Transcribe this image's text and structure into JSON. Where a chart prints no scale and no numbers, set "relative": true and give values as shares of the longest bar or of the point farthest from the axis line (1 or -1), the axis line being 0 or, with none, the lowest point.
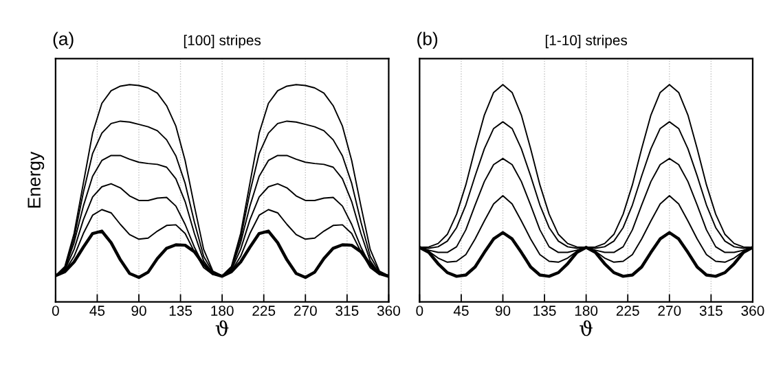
{
  "chart_data": [
    {
      "type": "line",
      "title": "[100] stripes",
      "annotations": [
        "(a)"
      ],
      "ylabel": "Energy",
      "xlabel": "ϑ",
      "relative": true,
      "grid": "x",
      "x": [
        0,
        10,
        20,
        30,
        40,
        50,
        60,
        70,
        80,
        90,
        100,
        110,
        120,
        130,
        140,
        150,
        160,
        170,
        180,
        190,
        200,
        210,
        220,
        230,
        240,
        250,
        260,
        270,
        280,
        290,
        300,
        310,
        320,
        330,
        340,
        350,
        360
      ],
      "xlim": [
        0,
        360
      ],
      "xticks": [
        0,
        45,
        90,
        135,
        180,
        225,
        270,
        315,
        360
      ],
      "series": [
        {
          "color": "#000000",
          "values": [
            0.121,
            0.139,
            0.184,
            0.252,
            0.315,
            0.326,
            0.273,
            0.194,
            0.131,
            0.113,
            0.137,
            0.2,
            0.247,
            0.263,
            0.261,
            0.231,
            0.173,
            0.131,
            0.118,
            0.139,
            0.184,
            0.252,
            0.315,
            0.326,
            0.273,
            0.194,
            0.131,
            0.113,
            0.137,
            0.2,
            0.247,
            0.263,
            0.261,
            0.231,
            0.173,
            0.131,
            0.118
          ]
        },
        {
          "color": "#000000",
          "values": [
            0.121,
            0.142,
            0.21,
            0.315,
            0.399,
            0.425,
            0.41,
            0.357,
            0.31,
            0.289,
            0.294,
            0.326,
            0.352,
            0.355,
            0.315,
            0.231,
            0.158,
            0.126,
            0.121,
            0.142,
            0.21,
            0.315,
            0.399,
            0.425,
            0.41,
            0.357,
            0.31,
            0.289,
            0.294,
            0.326,
            0.352,
            0.355,
            0.315,
            0.231,
            0.158,
            0.126,
            0.121
          ]
        },
        {
          "color": "#000000",
          "values": [
            0.121,
            0.147,
            0.242,
            0.378,
            0.483,
            0.53,
            0.544,
            0.525,
            0.488,
            0.467,
            0.467,
            0.478,
            0.481,
            0.441,
            0.357,
            0.252,
            0.168,
            0.128,
            0.121,
            0.147,
            0.242,
            0.378,
            0.483,
            0.53,
            0.544,
            0.525,
            0.488,
            0.467,
            0.467,
            0.478,
            0.481,
            0.441,
            0.357,
            0.252,
            0.168,
            0.128,
            0.121
          ]
        },
        {
          "color": "#000000",
          "values": [
            0.121,
            0.152,
            0.273,
            0.441,
            0.578,
            0.651,
            0.674,
            0.674,
            0.657,
            0.643,
            0.637,
            0.633,
            0.62,
            0.567,
            0.462,
            0.315,
            0.189,
            0.131,
            0.121,
            0.152,
            0.273,
            0.441,
            0.578,
            0.651,
            0.674,
            0.674,
            0.657,
            0.643,
            0.637,
            0.633,
            0.62,
            0.567,
            0.462,
            0.315,
            0.189,
            0.131,
            0.121
          ]
        },
        {
          "color": "#000000",
          "values": [
            0.121,
            0.158,
            0.294,
            0.504,
            0.683,
            0.777,
            0.821,
            0.832,
            0.828,
            0.817,
            0.806,
            0.788,
            0.746,
            0.672,
            0.546,
            0.368,
            0.21,
            0.137,
            0.121,
            0.158,
            0.294,
            0.504,
            0.683,
            0.777,
            0.821,
            0.832,
            0.828,
            0.817,
            0.806,
            0.788,
            0.746,
            0.672,
            0.546,
            0.368,
            0.21,
            0.137,
            0.121
          ]
        },
        {
          "color": "#000000",
          "values": [
            0.121,
            0.163,
            0.315,
            0.546,
            0.777,
            0.914,
            0.972,
            0.993,
            1.0,
            0.996,
            0.985,
            0.961,
            0.903,
            0.809,
            0.651,
            0.441,
            0.242,
            0.142,
            0.121,
            0.163,
            0.315,
            0.546,
            0.777,
            0.914,
            0.972,
            0.993,
            1.0,
            0.996,
            0.985,
            0.961,
            0.903,
            0.809,
            0.651,
            0.441,
            0.242,
            0.142,
            0.121
          ]
        }
      ]
    },
    {
      "type": "line",
      "title": "[1-10] stripes",
      "annotations": [
        "(b)"
      ],
      "xlabel": "ϑ",
      "relative": true,
      "grid": "x",
      "x": [
        0,
        10,
        20,
        30,
        40,
        50,
        60,
        70,
        80,
        90,
        100,
        110,
        120,
        130,
        140,
        150,
        160,
        170,
        180,
        190,
        200,
        210,
        220,
        230,
        240,
        250,
        260,
        270,
        280,
        290,
        300,
        310,
        320,
        330,
        340,
        350,
        360
      ],
      "xlim": [
        0,
        360
      ],
      "xticks": [
        0,
        45,
        90,
        135,
        180,
        225,
        270,
        315,
        360
      ],
      "series": [
        {
          "color": "#000000",
          "values": [
            0.251,
            0.228,
            0.176,
            0.135,
            0.118,
            0.124,
            0.161,
            0.228,
            0.29,
            0.319,
            0.29,
            0.228,
            0.161,
            0.124,
            0.118,
            0.135,
            0.176,
            0.228,
            0.251,
            0.228,
            0.176,
            0.135,
            0.118,
            0.124,
            0.161,
            0.228,
            0.29,
            0.319,
            0.29,
            0.228,
            0.161,
            0.124,
            0.118,
            0.135,
            0.176,
            0.228,
            0.251
          ]
        },
        {
          "color": "#000000",
          "values": [
            0.251,
            0.233,
            0.202,
            0.183,
            0.187,
            0.218,
            0.29,
            0.373,
            0.451,
            0.489,
            0.451,
            0.373,
            0.29,
            0.218,
            0.187,
            0.183,
            0.202,
            0.233,
            0.251,
            0.233,
            0.202,
            0.183,
            0.187,
            0.218,
            0.29,
            0.373,
            0.451,
            0.489,
            0.451,
            0.373,
            0.29,
            0.218,
            0.187,
            0.183,
            0.202,
            0.233,
            0.251
          ]
        },
        {
          "color": "#000000",
          "values": [
            0.251,
            0.238,
            0.228,
            0.228,
            0.254,
            0.332,
            0.446,
            0.554,
            0.632,
            0.66,
            0.632,
            0.554,
            0.446,
            0.332,
            0.254,
            0.228,
            0.228,
            0.238,
            0.251,
            0.238,
            0.228,
            0.228,
            0.254,
            0.332,
            0.446,
            0.554,
            0.632,
            0.66,
            0.632,
            0.554,
            0.446,
            0.332,
            0.254,
            0.228,
            0.228,
            0.238,
            0.251
          ]
        },
        {
          "color": "#000000",
          "values": [
            0.251,
            0.247,
            0.254,
            0.28,
            0.342,
            0.446,
            0.58,
            0.705,
            0.798,
            0.829,
            0.798,
            0.705,
            0.58,
            0.446,
            0.342,
            0.28,
            0.254,
            0.247,
            0.251,
            0.247,
            0.254,
            0.28,
            0.342,
            0.446,
            0.58,
            0.705,
            0.798,
            0.829,
            0.798,
            0.705,
            0.58,
            0.446,
            0.342,
            0.28,
            0.254,
            0.247,
            0.251
          ]
        },
        {
          "color": "#000000",
          "values": [
            0.251,
            0.253,
            0.269,
            0.311,
            0.404,
            0.539,
            0.705,
            0.86,
            0.964,
            1.0,
            0.964,
            0.86,
            0.705,
            0.539,
            0.404,
            0.311,
            0.269,
            0.253,
            0.251,
            0.253,
            0.269,
            0.311,
            0.404,
            0.539,
            0.705,
            0.86,
            0.964,
            1.0,
            0.964,
            0.86,
            0.705,
            0.539,
            0.404,
            0.311,
            0.269,
            0.253,
            0.251
          ]
        }
      ]
    }
  ]
}
